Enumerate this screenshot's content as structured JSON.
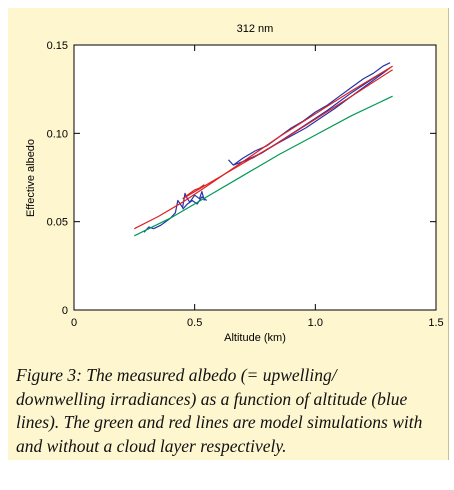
{
  "chart_data": {
    "type": "line",
    "title": "312 nm",
    "xlabel": "Altitude (km)",
    "ylabel": "Effective albedo",
    "xlim": [
      0,
      1.5
    ],
    "ylim": [
      0,
      0.15
    ],
    "xticks": [
      0,
      0.5,
      1.0,
      1.5
    ],
    "xtick_labels": [
      "0",
      "0.5",
      "1.0",
      "1.5"
    ],
    "yticks": [
      0,
      0.05,
      0.1,
      0.15
    ],
    "ytick_labels": [
      "0",
      "0.05",
      "0.10",
      "0.15"
    ],
    "grid": false,
    "legend": "none",
    "series": [
      {
        "color": "#2233aa",
        "values": [
          {
            "x": 0.29,
            "y": 0.044
          },
          {
            "x": 0.31,
            "y": 0.047
          },
          {
            "x": 0.33,
            "y": 0.046
          },
          {
            "x": 0.36,
            "y": 0.048
          },
          {
            "x": 0.4,
            "y": 0.052
          },
          {
            "x": 0.42,
            "y": 0.055
          },
          {
            "x": 0.43,
            "y": 0.062
          },
          {
            "x": 0.44,
            "y": 0.06
          },
          {
            "x": 0.45,
            "y": 0.058
          },
          {
            "x": 0.46,
            "y": 0.066
          },
          {
            "x": 0.47,
            "y": 0.063
          },
          {
            "x": 0.48,
            "y": 0.061
          },
          {
            "x": 0.5,
            "y": 0.065
          },
          {
            "x": 0.52,
            "y": 0.063
          },
          {
            "x": 0.53,
            "y": 0.067
          },
          {
            "x": 0.54,
            "y": 0.062
          }
        ]
      },
      {
        "color": "#2233aa",
        "values": [
          {
            "x": 0.45,
            "y": 0.057
          },
          {
            "x": 0.47,
            "y": 0.06
          },
          {
            "x": 0.49,
            "y": 0.062
          },
          {
            "x": 0.51,
            "y": 0.06
          },
          {
            "x": 0.53,
            "y": 0.064
          },
          {
            "x": 0.55,
            "y": 0.062
          }
        ]
      },
      {
        "color": "#2233aa",
        "values": [
          {
            "x": 0.64,
            "y": 0.085
          },
          {
            "x": 0.66,
            "y": 0.082
          },
          {
            "x": 0.7,
            "y": 0.086
          },
          {
            "x": 0.75,
            "y": 0.09
          },
          {
            "x": 0.8,
            "y": 0.093
          },
          {
            "x": 0.85,
            "y": 0.098
          },
          {
            "x": 0.9,
            "y": 0.103
          },
          {
            "x": 0.95,
            "y": 0.107
          },
          {
            "x": 1.0,
            "y": 0.112
          },
          {
            "x": 1.05,
            "y": 0.116
          },
          {
            "x": 1.1,
            "y": 0.121
          },
          {
            "x": 1.15,
            "y": 0.126
          },
          {
            "x": 1.2,
            "y": 0.131
          },
          {
            "x": 1.24,
            "y": 0.134
          },
          {
            "x": 1.28,
            "y": 0.138
          },
          {
            "x": 1.31,
            "y": 0.14
          }
        ]
      },
      {
        "color": "#2233aa",
        "values": [
          {
            "x": 0.7,
            "y": 0.084
          },
          {
            "x": 0.78,
            "y": 0.089
          },
          {
            "x": 0.86,
            "y": 0.096
          },
          {
            "x": 0.95,
            "y": 0.104
          },
          {
            "x": 1.05,
            "y": 0.113
          },
          {
            "x": 1.15,
            "y": 0.123
          },
          {
            "x": 1.25,
            "y": 0.132
          },
          {
            "x": 1.31,
            "y": 0.137
          }
        ]
      },
      {
        "color": "#2233aa",
        "values": [
          {
            "x": 0.66,
            "y": 0.082
          },
          {
            "x": 0.74,
            "y": 0.086
          },
          {
            "x": 0.84,
            "y": 0.094
          },
          {
            "x": 0.96,
            "y": 0.103
          },
          {
            "x": 1.08,
            "y": 0.114
          },
          {
            "x": 1.2,
            "y": 0.126
          },
          {
            "x": 1.3,
            "y": 0.136
          }
        ]
      },
      {
        "color": "#009955",
        "values": [
          {
            "x": 0.25,
            "y": 0.042
          },
          {
            "x": 0.4,
            "y": 0.052
          },
          {
            "x": 0.55,
            "y": 0.064
          },
          {
            "x": 0.7,
            "y": 0.076
          },
          {
            "x": 0.85,
            "y": 0.088
          },
          {
            "x": 1.0,
            "y": 0.099
          },
          {
            "x": 1.15,
            "y": 0.11
          },
          {
            "x": 1.32,
            "y": 0.121
          }
        ]
      },
      {
        "color": "#dd2222",
        "values": [
          {
            "x": 0.25,
            "y": 0.046
          },
          {
            "x": 0.35,
            "y": 0.053
          },
          {
            "x": 0.45,
            "y": 0.061
          },
          {
            "x": 0.55,
            "y": 0.07
          },
          {
            "x": 0.7,
            "y": 0.084
          },
          {
            "x": 0.85,
            "y": 0.098
          },
          {
            "x": 1.0,
            "y": 0.111
          },
          {
            "x": 1.15,
            "y": 0.124
          },
          {
            "x": 1.32,
            "y": 0.138
          }
        ]
      },
      {
        "color": "#dd2222",
        "values": [
          {
            "x": 0.45,
            "y": 0.063
          },
          {
            "x": 0.55,
            "y": 0.071
          },
          {
            "x": 0.7,
            "y": 0.083
          },
          {
            "x": 0.85,
            "y": 0.095
          },
          {
            "x": 1.0,
            "y": 0.108
          },
          {
            "x": 1.15,
            "y": 0.121
          },
          {
            "x": 1.32,
            "y": 0.136
          }
        ]
      },
      {
        "color": "#dd2222",
        "values": [
          {
            "x": 0.46,
            "y": 0.064
          },
          {
            "x": 0.48,
            "y": 0.066
          },
          {
            "x": 0.5,
            "y": 0.068
          },
          {
            "x": 0.52,
            "y": 0.069
          },
          {
            "x": 0.54,
            "y": 0.071
          }
        ]
      }
    ]
  },
  "caption": "Figure 3: The measured albedo (= upwelling/ downwelling irradiances) as a function of altitude (blue lines). The green and red lines are model simulations with and without a cloud layer respectively.",
  "colors": {
    "panel_background": "#fdf6cf",
    "plot_background": "#ffffff",
    "measured": "#2233aa",
    "model_with_cloud": "#009955",
    "model_without_cloud": "#dd2222"
  }
}
